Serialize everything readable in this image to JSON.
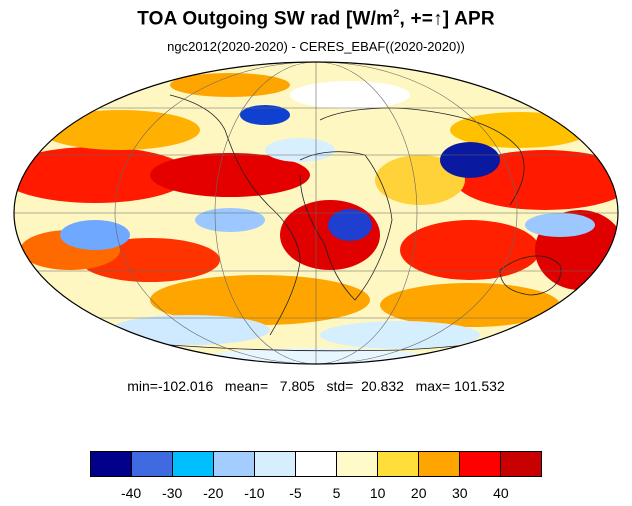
{
  "title": {
    "main": "TOA Outgoing SW rad [W/m",
    "sup": "2",
    "after_sup": ", +=",
    "arrow": "↑",
    "tail": "] APR"
  },
  "subtitle": "ngc2012(2020-2020) - CERES_EBAF((2020-2020))",
  "stats": {
    "text": "min=-102.016   mean=   7.805   std=  20.832   max= 101.532",
    "min": -102.016,
    "mean": 7.805,
    "std": 20.832,
    "max": 101.532
  },
  "map": {
    "projection": "mollweide",
    "ocean_fill": "#ffffff",
    "grid": true
  },
  "colorbar": {
    "colors": [
      "#00008b",
      "#3f6ae0",
      "#00bfff",
      "#a3ccff",
      "#d6efff",
      "#ffffff",
      "#fffbc8",
      "#ffde3a",
      "#ffa500",
      "#ff0000",
      "#c80000"
    ],
    "ticks": [
      "-40",
      "-30",
      "-20",
      "-10",
      "-5",
      "5",
      "10",
      "20",
      "30",
      "40"
    ]
  }
}
